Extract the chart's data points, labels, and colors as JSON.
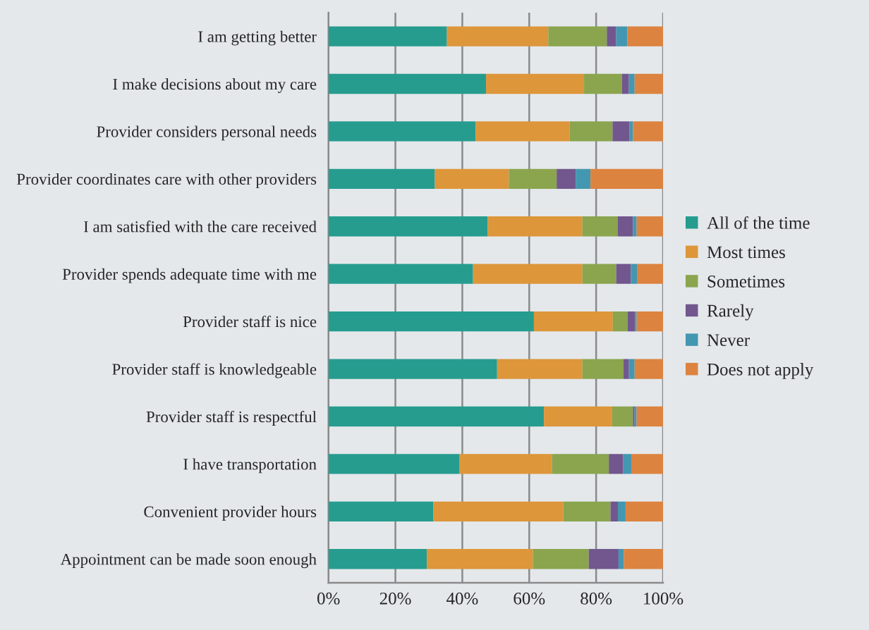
{
  "chart_data": {
    "type": "bar",
    "orientation": "horizontal",
    "stacked": true,
    "categories": [
      "I am getting better",
      "I make decisions about my care",
      "Provider considers personal needs",
      "Provider coordinates care with other providers",
      "I am satisfied with the care received",
      "Provider spends adequate time with me",
      "Provider staff is nice",
      "Provider staff is knowledgeable",
      "Provider staff is respectful",
      "I have transportation",
      "Convenient provider hours",
      "Appointment can be made soon enough"
    ],
    "series": [
      {
        "name": "All of the time",
        "color": "#269c8f",
        "values": [
          35.4,
          47.1,
          44.0,
          31.8,
          47.6,
          43.2,
          61.4,
          50.4,
          64.4,
          39.2,
          31.3,
          29.4
        ]
      },
      {
        "name": "Most times",
        "color": "#dd963a",
        "values": [
          30.3,
          29.3,
          28.1,
          22.1,
          28.3,
          32.7,
          23.6,
          25.5,
          20.4,
          27.6,
          38.9,
          31.7
        ]
      },
      {
        "name": "Sometimes",
        "color": "#8aa54e",
        "values": [
          17.5,
          11.3,
          12.8,
          14.3,
          10.6,
          10.1,
          4.4,
          12.3,
          6.2,
          17.0,
          14.1,
          16.7
        ]
      },
      {
        "name": "Rarely",
        "color": "#71578d",
        "values": [
          2.8,
          2.1,
          5.1,
          5.7,
          4.5,
          4.4,
          2.2,
          1.6,
          0.5,
          4.3,
          2.2,
          8.9
        ]
      },
      {
        "name": "Never",
        "color": "#4397b1",
        "values": [
          3.3,
          1.7,
          1.0,
          4.4,
          1.1,
          1.8,
          0.5,
          1.7,
          0.6,
          2.4,
          2.3,
          1.6
        ]
      },
      {
        "name": "Does not apply",
        "color": "#dc833f",
        "values": [
          10.7,
          8.5,
          9.0,
          21.7,
          7.9,
          7.8,
          7.9,
          8.5,
          7.9,
          9.5,
          11.2,
          11.7
        ]
      }
    ],
    "xlim": [
      0,
      100
    ],
    "xticks": [
      {
        "value": 0,
        "label": "0%"
      },
      {
        "value": 20,
        "label": "20%"
      },
      {
        "value": 40,
        "label": "40%"
      },
      {
        "value": 60,
        "label": "60%"
      },
      {
        "value": 80,
        "label": "80%"
      },
      {
        "value": 100,
        "label": "100%"
      }
    ],
    "grid": "x",
    "legend": "right"
  }
}
